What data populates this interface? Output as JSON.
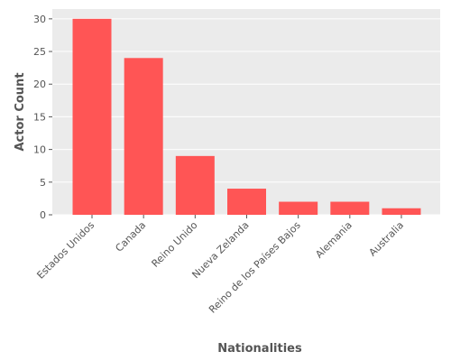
{
  "chart_data": {
    "type": "bar",
    "title": "",
    "xlabel": "Nationalities",
    "ylabel": "Actor Count",
    "categories": [
      "Estados Unidos",
      "Canada",
      "Reino Unido",
      "Nueva Zelanda",
      "Reino de los Países Bajos",
      "Alemania",
      "Australia"
    ],
    "values": [
      30,
      24,
      9,
      4,
      2,
      2,
      1
    ],
    "ylim": [
      0,
      31.5
    ],
    "yticks": [
      0,
      5,
      10,
      15,
      20,
      25,
      30
    ],
    "grid": true,
    "bar_color": "#ff5555",
    "background_color": "#ebebeb",
    "grid_color": "#ffffff",
    "text_color": "#555555"
  }
}
